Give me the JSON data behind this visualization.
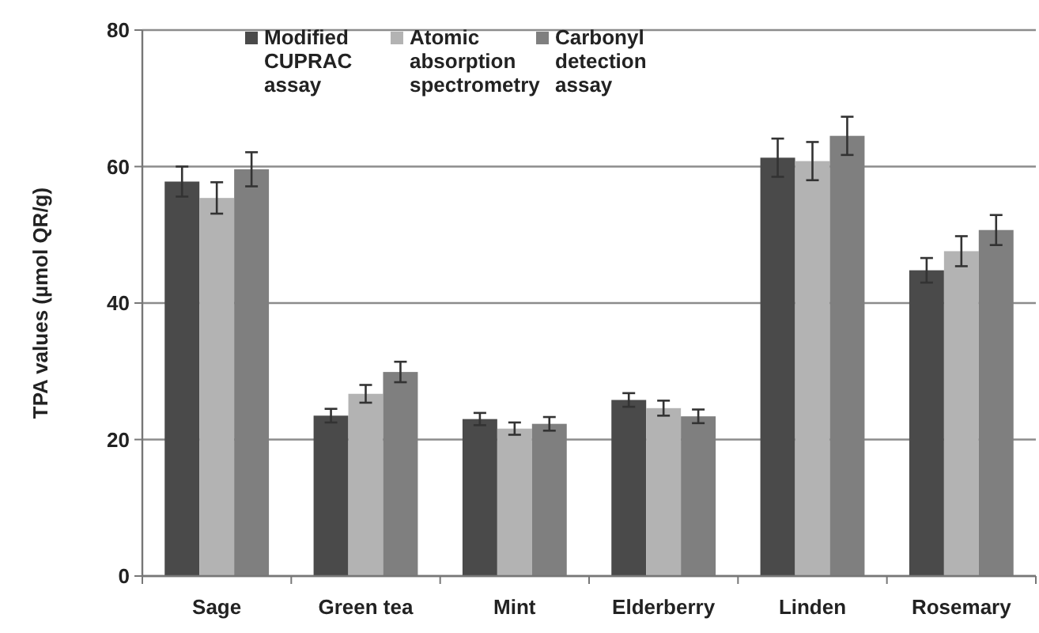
{
  "chart_data": {
    "type": "bar",
    "ylabel": "TPA values (µmol QR/g)",
    "categories": [
      "Sage",
      "Green tea",
      "Mint",
      "Elderberry",
      "Linden",
      "Rosemary"
    ],
    "series": [
      {
        "name": "Modified CUPRAC assay",
        "color": "#4a4a4a",
        "values": [
          57.8,
          23.5,
          23,
          25.8,
          61.3,
          44.8
        ],
        "errors": [
          2.2,
          1,
          0.9,
          1,
          2.8,
          1.8
        ]
      },
      {
        "name": "Atomic absorption spectrometry",
        "color": "#b3b3b3",
        "values": [
          55.4,
          26.7,
          21.6,
          24.6,
          60.8,
          47.6
        ],
        "errors": [
          2.3,
          1.3,
          0.9,
          1.1,
          2.8,
          2.2
        ]
      },
      {
        "name": "Carbonyl detection assay",
        "color": "#7f7f7f",
        "values": [
          59.6,
          29.9,
          22.3,
          23.4,
          64.5,
          50.7
        ],
        "errors": [
          2.5,
          1.5,
          1,
          1,
          2.8,
          2.2
        ]
      }
    ],
    "ylim": [
      0,
      80
    ],
    "yticks": [
      0,
      20,
      40,
      60,
      80
    ],
    "grid": "y",
    "legend": "top"
  }
}
